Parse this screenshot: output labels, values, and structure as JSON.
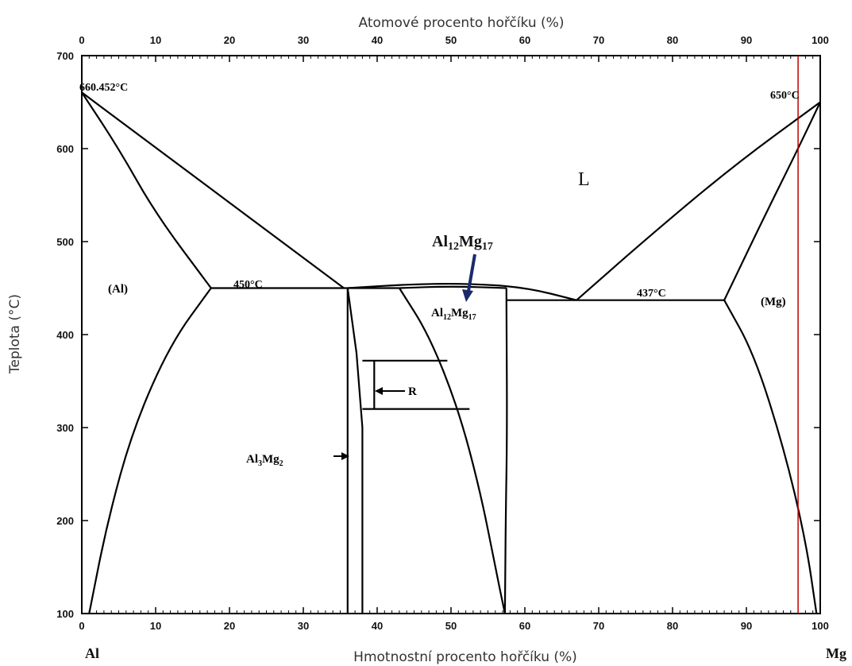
{
  "chart_data": {
    "type": "phase-diagram",
    "title": "",
    "xlabel_top": "Atomové procento hořčíku (%)",
    "xlabel_bottom": "Hmotnostní procento hořčíku (%)",
    "ylabel": "Teplota (°C)",
    "xlim": [
      0,
      100
    ],
    "ylim": [
      100,
      700
    ],
    "x_ticks_bottom": [
      "0",
      "10",
      "20",
      "30",
      "40",
      "50",
      "60",
      "70",
      "80",
      "90",
      "100"
    ],
    "x_ticks_top": [
      "0",
      "10",
      "20",
      "30",
      "40",
      "50",
      "60",
      "70",
      "80",
      "90",
      "100"
    ],
    "y_ticks": [
      "100",
      "200",
      "300",
      "400",
      "500",
      "600",
      "700"
    ],
    "left_element": "Al",
    "right_element": "Mg",
    "temperatures": {
      "al_melting": "660.452°C",
      "mg_melting": "650°C",
      "eutectic_al": "450°C",
      "eutectic_mg": "437°C"
    },
    "points": {
      "al_melting": [
        0,
        660.452
      ],
      "mg_melting": [
        100,
        650
      ],
      "eutectic_al": [
        35.5,
        450
      ],
      "eutectic_mg": [
        67,
        437
      ],
      "al_max_solubility": [
        17.5,
        450
      ],
      "mg_max_solubility": [
        87,
        437
      ],
      "al12mg17_max": [
        52,
        455
      ]
    },
    "phases": {
      "liquid": "L",
      "al_solid": "(Al)",
      "mg_solid": "(Mg)",
      "gamma": "Al12Mg17",
      "beta": "Al3Mg2",
      "r_phase": "R"
    },
    "callout_label": "Al12Mg17",
    "marker_line": {
      "x": 97,
      "color": "#c00000"
    },
    "series": [
      {
        "name": "",
        "x": [
          0,
          8,
          17.5
        ],
        "y": [
          660.452,
          560,
          450
        ]
      },
      {
        "name": "",
        "x": [
          0,
          35.5
        ],
        "y": [
          660.452,
          450
        ]
      },
      {
        "name": "",
        "x": [
          17.5,
          12,
          6,
          3,
          1
        ],
        "y": [
          450,
          400,
          300,
          200,
          100
        ]
      },
      {
        "name": "",
        "x": [
          17.5,
          35.5
        ],
        "y": [
          450,
          450
        ]
      },
      {
        "name": "",
        "x": [
          100,
          95,
          87
        ],
        "y": [
          650,
          580,
          437
        ]
      },
      {
        "name": "",
        "x": [
          100,
          67
        ],
        "y": [
          650,
          437
        ]
      },
      {
        "name": "",
        "x": [
          87,
          92,
          96,
          98,
          99.5
        ],
        "y": [
          437,
          380,
          280,
          180,
          100
        ]
      },
      {
        "name": "",
        "x": [
          57.5,
          87
        ],
        "y": [
          437,
          437
        ]
      }
    ]
  },
  "colors": {
    "line": "#000000",
    "marker": "#c00000",
    "arrow": "#1a2a6c"
  }
}
